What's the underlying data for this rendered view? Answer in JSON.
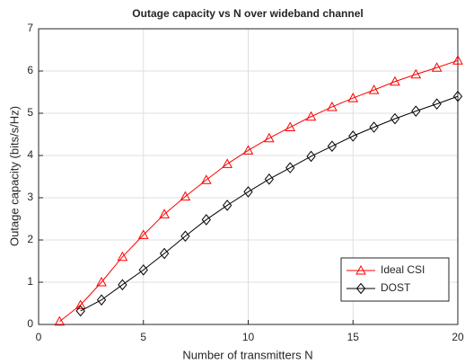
{
  "chart_data": {
    "type": "line",
    "title": "Outage capacity vs N over wideband channel",
    "xlabel": "Number of transmitters N",
    "ylabel": "Outage capacity (bits/s/Hz)",
    "x": [
      1,
      2,
      3,
      4,
      5,
      6,
      7,
      8,
      9,
      10,
      11,
      12,
      13,
      14,
      15,
      16,
      17,
      18,
      19,
      20
    ],
    "series": [
      {
        "name": "Ideal CSI",
        "color": "#ff0000",
        "marker": "triangle",
        "values": [
          0.07,
          0.46,
          1.0,
          1.6,
          2.12,
          2.61,
          3.03,
          3.42,
          3.8,
          4.12,
          4.41,
          4.67,
          4.92,
          5.15,
          5.36,
          5.55,
          5.75,
          5.92,
          6.08,
          6.25
        ]
      },
      {
        "name": "DOST",
        "color": "#000000",
        "marker": "diamond",
        "values": [
          null,
          0.32,
          0.58,
          0.94,
          1.29,
          1.68,
          2.09,
          2.48,
          2.82,
          3.14,
          3.44,
          3.71,
          3.98,
          4.22,
          4.46,
          4.67,
          4.87,
          5.05,
          5.22,
          5.4
        ]
      }
    ],
    "xlim": [
      0,
      20
    ],
    "xticks": [
      0,
      5,
      10,
      15,
      20
    ],
    "ylim": [
      0,
      7
    ],
    "yticks": [
      0,
      1,
      2,
      3,
      4,
      5,
      6,
      7
    ],
    "grid": true,
    "legend": "lower-right"
  }
}
